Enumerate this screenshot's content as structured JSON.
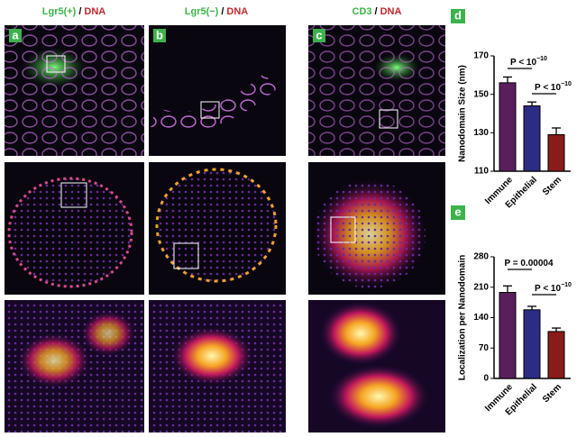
{
  "headers": [
    {
      "marker": "Lgr5(+)",
      "separator": "/",
      "stain": "DNA"
    },
    {
      "marker": "Lgr5(−)",
      "separator": "/",
      "stain": "DNA"
    },
    {
      "marker": "CD3",
      "separator": "/",
      "stain": "DNA"
    }
  ],
  "panel_labels": [
    "a",
    "b",
    "c"
  ],
  "chart_data": [
    {
      "type": "bar",
      "label": "d",
      "ylabel": "Nanodomain Size (nm)",
      "categories": [
        "Immune",
        "Epithelial",
        "Stem"
      ],
      "values": [
        156,
        144,
        129
      ],
      "errors": [
        3,
        2,
        3.5
      ],
      "colors": [
        "#5a1e5c",
        "#2c2c86",
        "#8a1b1b"
      ],
      "ylim": [
        110,
        170
      ],
      "yticks": [
        110,
        130,
        150,
        170
      ],
      "annotations": [
        {
          "base": "P < 10",
          "exponent": "−10"
        },
        {
          "base": "P < 10",
          "exponent": "−10"
        }
      ]
    },
    {
      "type": "bar",
      "label": "e",
      "ylabel": "Localization per Nanodomain",
      "categories": [
        "Immune",
        "Epithelial",
        "Stem"
      ],
      "values": [
        198,
        158,
        108
      ],
      "errors": [
        15,
        8,
        8
      ],
      "colors": [
        "#5a1e5c",
        "#2c2c86",
        "#8a1b1b"
      ],
      "ylim": [
        0,
        280
      ],
      "yticks": [
        0,
        70,
        140,
        210,
        280
      ],
      "annotations": [
        {
          "base": "P = 0.00004"
        },
        {
          "base": "P < 10",
          "exponent": "−10"
        }
      ]
    }
  ]
}
